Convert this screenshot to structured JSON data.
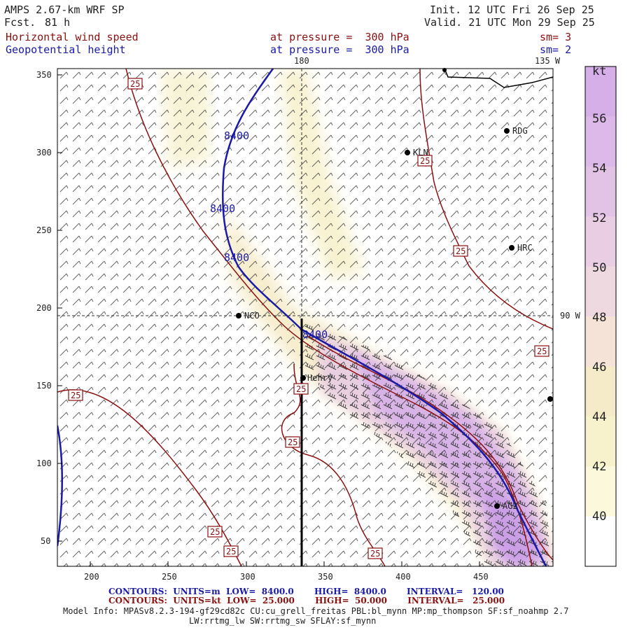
{
  "header": {
    "model": "AMPS 2.67-km WRF SP",
    "fcst_label": "Fcst.",
    "fcst_hours": "81 h",
    "init": "Init. 12 UTC Fri 26 Sep 25",
    "valid": "Valid. 21 UTC Mon 29 Sep 25"
  },
  "fields": [
    {
      "name": "Horizontal wind speed",
      "level": "at pressure =  300 hPa",
      "smooth": "sm= 3"
    },
    {
      "name": "Geopotential height",
      "level": "at pressure =  300 hPa",
      "smooth": "sm= 2"
    }
  ],
  "map": {
    "x_ticks": [
      "200",
      "250",
      "300",
      "350",
      "400",
      "450"
    ],
    "y_ticks": [
      "350",
      "300",
      "250",
      "200",
      "150",
      "100",
      "50"
    ],
    "meridian_labels": [
      "180",
      "135 W",
      "90 W"
    ],
    "stations": [
      "RDG",
      "KLN",
      "HRC",
      "NCO",
      "Henry",
      "AG2"
    ],
    "height_labels": [
      "8400",
      "8400",
      "8400",
      "8400"
    ],
    "speed_label": "25",
    "colors": {
      "height_contour": "#1a1aa8",
      "speed_contour": "#8b1010",
      "jet_fill": "#c99be6",
      "weak_fill": "#f6efc6"
    }
  },
  "colorbar": {
    "unit": "kt",
    "labels": [
      "56",
      "54",
      "52",
      "50",
      "48",
      "46",
      "44",
      "42",
      "40"
    ],
    "colors": [
      "#d6aee8",
      "#dcb9e8",
      "#e2c3e6",
      "#e8cde3",
      "#efd9e0",
      "#f4e3d6",
      "#f6ebc8",
      "#f8f2cc",
      "#fbf8dc",
      "#ffffff"
    ]
  },
  "footer": {
    "line1": "CONTOURS:  UNITS=m  LOW=  8400.0       HIGH=  8400.0       INTERVAL=   120.00",
    "line2": "CONTOURS:  UNITS=kt  LOW=  25.000       HIGH=  50.000       INTERVAL=   25.000",
    "model_info": "Model Info: MPASv8.2.3-194-gf29cd82c CU:cu_grell_freitas PBL:bl_mynn MP:mp_thompson SF:sf_noahmp 2.7",
    "model_info2": "LW:rrtmg_lw SW:rrtmg_sw SFLAY:sf_mynn"
  }
}
